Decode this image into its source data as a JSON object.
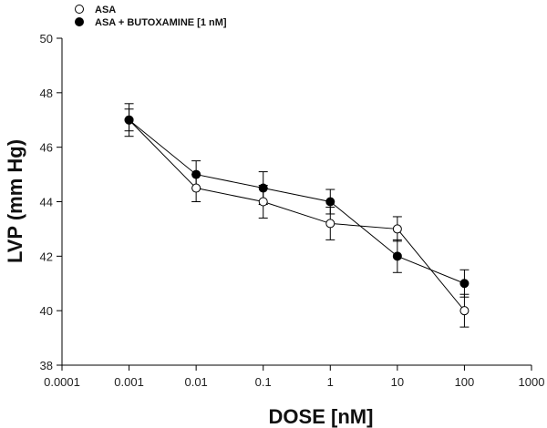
{
  "chart_data": {
    "type": "line",
    "title": "",
    "xlabel": "DOSE [nM]",
    "ylabel": "LVP (mm Hg)",
    "x_scale": "log",
    "xlim": [
      0.0001,
      1000
    ],
    "ylim": [
      38,
      50
    ],
    "x_ticks": [
      0.0001,
      0.001,
      0.01,
      0.1,
      1,
      10,
      100,
      1000
    ],
    "x_tick_labels": [
      "0.0001",
      "0.001",
      "0.01",
      "0.1",
      "1",
      "10",
      "100",
      "1000"
    ],
    "y_ticks": [
      38,
      40,
      42,
      44,
      46,
      48,
      50
    ],
    "y_tick_labels": [
      "38",
      "40",
      "42",
      "44",
      "46",
      "48",
      "50"
    ],
    "grid": false,
    "legend_position": "top-left",
    "x": [
      0.001,
      0.01,
      0.1,
      1,
      10,
      100
    ],
    "series": [
      {
        "name": "ASA",
        "marker": "open-circle",
        "color": "#000000",
        "values": [
          47.0,
          44.5,
          44.0,
          43.2,
          43.0,
          40.0
        ],
        "error": [
          0.6,
          0.5,
          0.6,
          0.6,
          0.45,
          0.6
        ]
      },
      {
        "name": "ASA + BUTOXAMINE [1 nM]",
        "marker": "filled-circle",
        "color": "#000000",
        "values": [
          47.0,
          45.0,
          44.5,
          44.0,
          42.0,
          41.0
        ],
        "error": [
          0.4,
          0.5,
          0.6,
          0.45,
          0.6,
          0.5
        ]
      }
    ]
  }
}
